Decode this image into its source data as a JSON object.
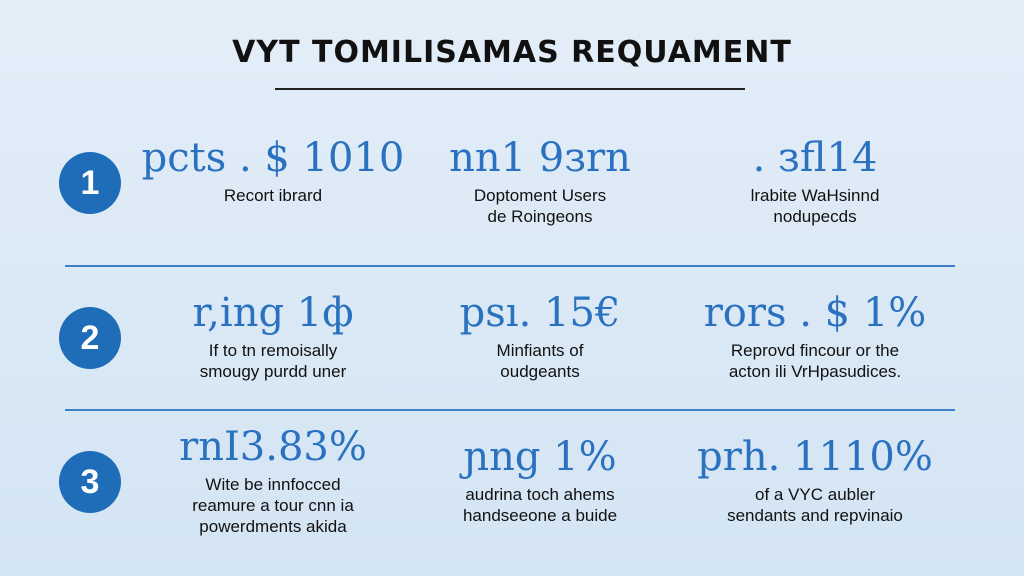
{
  "header": {
    "title": "VYT TOMILISAMAS REQUAMENT"
  },
  "rows": [
    {
      "number": "1",
      "items": [
        {
          "stat": "pcts . $ 1010",
          "lines": [
            "Recort ibrard"
          ]
        },
        {
          "stat": "nn1 9зrn",
          "lines": [
            "Doptoment Users",
            "de Roingeons"
          ]
        },
        {
          "stat": ". зfl14",
          "lines": [
            "lrabite WaHsinnd",
            "nodupecds"
          ]
        }
      ]
    },
    {
      "number": "2",
      "items": [
        {
          "stat": "r,ing 1ф",
          "lines": [
            "If to tn remoisally",
            "smougy purdd uner"
          ]
        },
        {
          "stat": "psı. 15€",
          "lines": [
            "Minfiants of",
            "oudgeants"
          ]
        },
        {
          "stat": "rors . $ 1%",
          "lines": [
            "Reprovd fincour or the",
            "acton ili VrHpasudices."
          ]
        }
      ]
    },
    {
      "number": "3",
      "items": [
        {
          "stat": "rnI3.83%",
          "lines": [
            "Wite be innfocced",
            "reamure a tour cnn ia",
            "powerdments akida"
          ]
        },
        {
          "stat": "ɲng 1%",
          "lines": [
            "audrina toch ahems",
            "handseeone a buide"
          ]
        },
        {
          "stat": "prh. 1110%",
          "lines": [
            "of a VYC aubler",
            "sendants and repvinaio"
          ]
        }
      ]
    }
  ]
}
